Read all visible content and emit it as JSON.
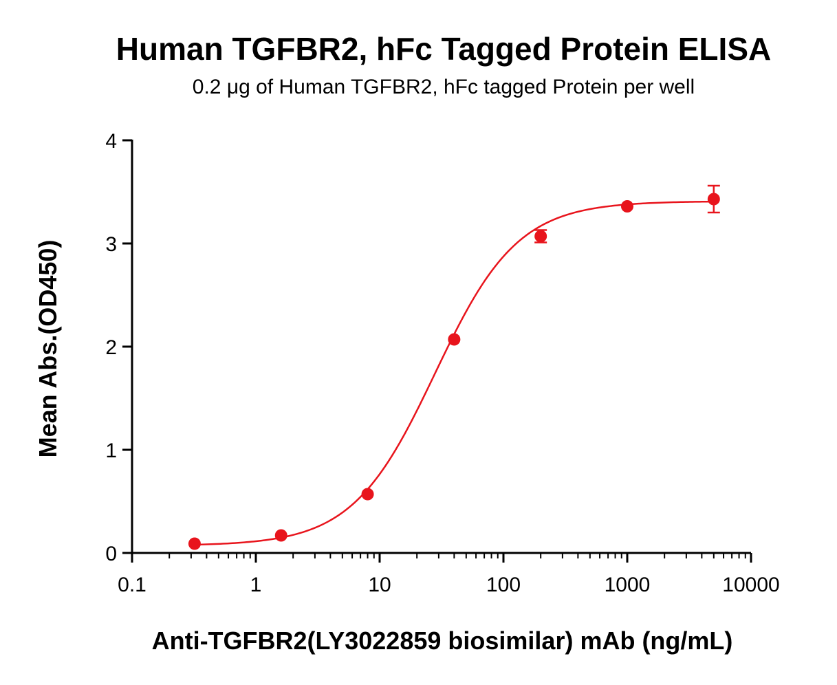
{
  "chart_data": {
    "type": "scatter",
    "title": "Human TGFBR2, hFc Tagged Protein ELISA",
    "subtitle": "0.2 μg of Human TGFBR2, hFc tagged Protein per well",
    "xlabel": "Anti-TGFBR2(LY3022859 biosimilar) mAb (ng/mL)",
    "ylabel": "Mean Abs.(OD450)",
    "x_scale": "log",
    "xlim": [
      0.1,
      10000
    ],
    "ylim": [
      0,
      4
    ],
    "x_ticks": [
      0.1,
      1,
      10,
      100,
      1000,
      10000
    ],
    "x_tick_labels": [
      "0.1",
      "1",
      "10",
      "100",
      "1000",
      "10000"
    ],
    "y_ticks": [
      0,
      1,
      2,
      3,
      4
    ],
    "y_tick_labels": [
      "0",
      "1",
      "2",
      "3",
      "4"
    ],
    "grid": false,
    "series": [
      {
        "color": "#e8141c",
        "x": [
          0.32,
          1.6,
          8,
          40,
          200,
          1000,
          5000
        ],
        "y": [
          0.09,
          0.17,
          0.57,
          2.07,
          3.07,
          3.36,
          3.43
        ],
        "error": [
          0.0,
          0.0,
          0.0,
          0.0,
          0.06,
          0.0,
          0.13
        ],
        "fit": {
          "type": "four-parameter logistic",
          "bottom": 0.07,
          "top": 3.41,
          "ec50": 28,
          "hill": 1.3
        }
      }
    ]
  }
}
